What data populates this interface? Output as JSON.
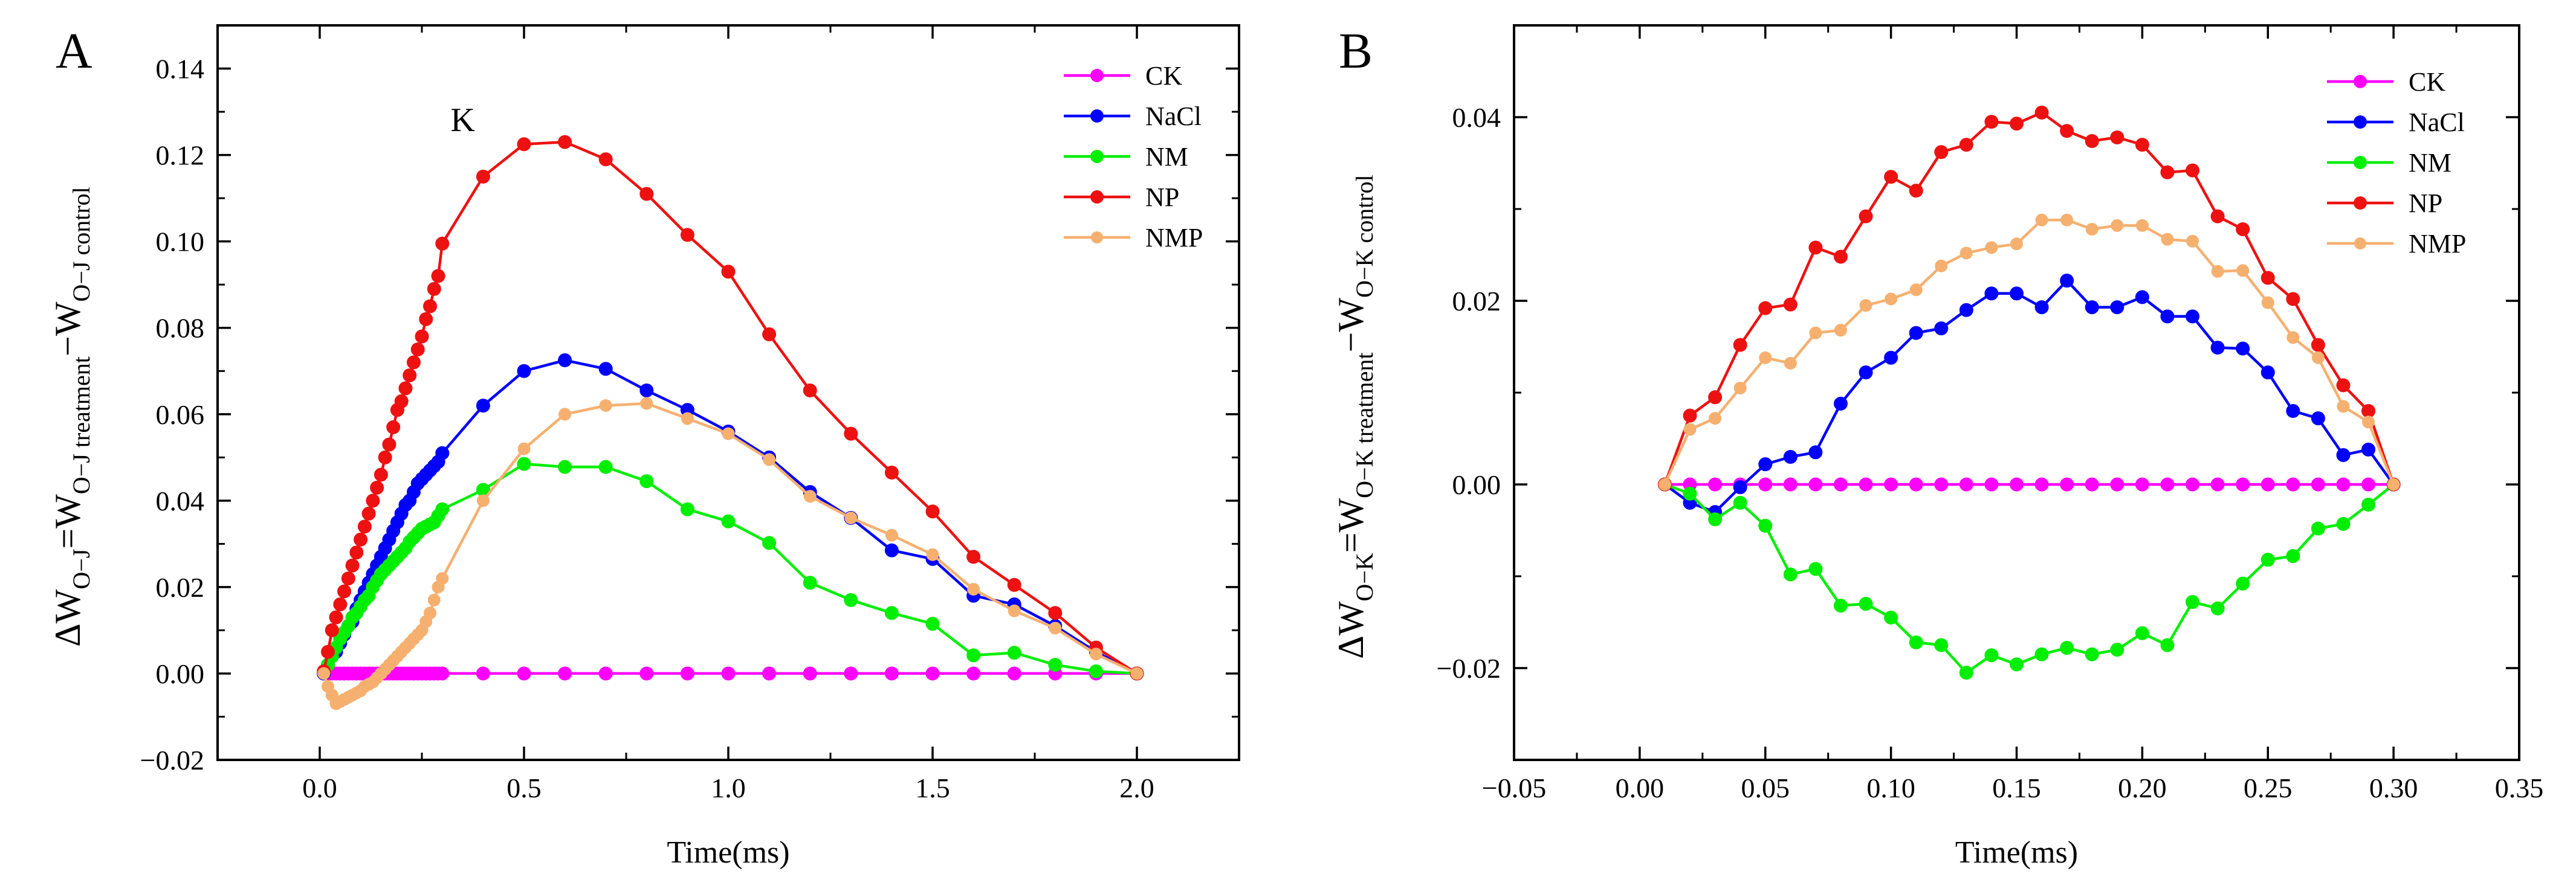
{
  "chart_data": [
    {
      "panel": "A",
      "type": "line",
      "xlabel": "Time(ms)",
      "ylabel": {
        "a": "ΔW",
        "b": "O−J",
        "c": "=W",
        "d": "O−J treatment",
        "e": "−W",
        "f": "O−J control"
      },
      "xlim": [
        -0.25,
        2.25
      ],
      "ylim": [
        -0.02,
        0.15
      ],
      "xticks": [
        0.0,
        0.5,
        1.0,
        1.5,
        2.0
      ],
      "xtick_labels": [
        "0.0",
        "0.5",
        "1.0",
        "1.5",
        "2.0"
      ],
      "yticks": [
        -0.02,
        0.0,
        0.02,
        0.04,
        0.06,
        0.08,
        0.1,
        0.12,
        0.14
      ],
      "ytick_labels": [
        "−0.02",
        "0.00",
        "0.02",
        "0.04",
        "0.06",
        "0.08",
        "0.10",
        "0.12",
        "0.14"
      ],
      "annotations": [
        {
          "text": "K",
          "x": 0.35,
          "y": 0.123
        }
      ],
      "legend": "top-right",
      "series": [
        {
          "name": "CK",
          "color": "#ff00ff",
          "x": [
            0.01,
            0.02,
            0.03,
            0.04,
            0.05,
            0.06,
            0.07,
            0.08,
            0.09,
            0.1,
            0.11,
            0.12,
            0.13,
            0.14,
            0.15,
            0.16,
            0.17,
            0.18,
            0.19,
            0.2,
            0.21,
            0.22,
            0.23,
            0.24,
            0.25,
            0.26,
            0.27,
            0.28,
            0.29,
            0.3,
            0.4,
            0.5,
            0.6,
            0.7,
            0.8,
            0.9,
            1.0,
            1.1,
            1.2,
            1.3,
            1.4,
            1.5,
            1.6,
            1.7,
            1.8,
            1.9,
            2.0
          ],
          "y": [
            0,
            0,
            0,
            0,
            0,
            0,
            0,
            0,
            0,
            0,
            0,
            0,
            0,
            0,
            0,
            0,
            0,
            0,
            0,
            0,
            0,
            0,
            0,
            0,
            0,
            0,
            0,
            0,
            0,
            0,
            0,
            0,
            0,
            0,
            0,
            0,
            0,
            0,
            0,
            0,
            0,
            0,
            0,
            0,
            0,
            0,
            0
          ]
        },
        {
          "name": "NaCl",
          "color": "#0000ff",
          "x": [
            0.01,
            0.02,
            0.03,
            0.04,
            0.05,
            0.06,
            0.07,
            0.08,
            0.09,
            0.1,
            0.11,
            0.12,
            0.13,
            0.14,
            0.15,
            0.16,
            0.17,
            0.18,
            0.19,
            0.2,
            0.21,
            0.22,
            0.23,
            0.24,
            0.25,
            0.26,
            0.27,
            0.28,
            0.29,
            0.3,
            0.4,
            0.5,
            0.6,
            0.7,
            0.8,
            0.9,
            1.0,
            1.1,
            1.2,
            1.3,
            1.4,
            1.5,
            1.6,
            1.7,
            1.8,
            1.9,
            2.0
          ],
          "y": [
            0,
            0.002,
            0.004,
            0.005,
            0.007,
            0.009,
            0.011,
            0.012,
            0.015,
            0.017,
            0.019,
            0.021,
            0.023,
            0.025,
            0.027,
            0.029,
            0.031,
            0.033,
            0.035,
            0.037,
            0.039,
            0.04,
            0.042,
            0.044,
            0.045,
            0.046,
            0.047,
            0.048,
            0.049,
            0.051,
            0.062,
            0.07,
            0.0725,
            0.0705,
            0.0655,
            0.061,
            0.056,
            0.05,
            0.042,
            0.036,
            0.0285,
            0.0265,
            0.018,
            0.016,
            0.011,
            0.005,
            0
          ]
        },
        {
          "name": "NM",
          "color": "#00ee00",
          "x": [
            0.01,
            0.02,
            0.03,
            0.04,
            0.05,
            0.06,
            0.07,
            0.08,
            0.09,
            0.1,
            0.11,
            0.12,
            0.13,
            0.14,
            0.15,
            0.16,
            0.17,
            0.18,
            0.19,
            0.2,
            0.21,
            0.22,
            0.23,
            0.24,
            0.25,
            0.26,
            0.27,
            0.28,
            0.29,
            0.3,
            0.4,
            0.5,
            0.6,
            0.7,
            0.8,
            0.9,
            1.0,
            1.1,
            1.2,
            1.3,
            1.4,
            1.5,
            1.6,
            1.7,
            1.8,
            1.9,
            2.0
          ],
          "y": [
            0.0005,
            0.002,
            0.004,
            0.006,
            0.008,
            0.0095,
            0.011,
            0.013,
            0.014,
            0.0155,
            0.017,
            0.018,
            0.02,
            0.0215,
            0.023,
            0.024,
            0.025,
            0.026,
            0.027,
            0.028,
            0.029,
            0.0305,
            0.0315,
            0.0325,
            0.0335,
            0.034,
            0.0345,
            0.035,
            0.0365,
            0.038,
            0.0425,
            0.0485,
            0.0478,
            0.0478,
            0.0445,
            0.038,
            0.0352,
            0.0302,
            0.021,
            0.017,
            0.014,
            0.0115,
            0.0042,
            0.0048,
            0.002,
            0.0005,
            0
          ]
        },
        {
          "name": "NP",
          "color": "#ee1111",
          "x": [
            0.01,
            0.02,
            0.03,
            0.04,
            0.05,
            0.06,
            0.07,
            0.08,
            0.09,
            0.1,
            0.11,
            0.12,
            0.13,
            0.14,
            0.15,
            0.16,
            0.17,
            0.18,
            0.19,
            0.2,
            0.21,
            0.22,
            0.23,
            0.24,
            0.25,
            0.26,
            0.27,
            0.28,
            0.29,
            0.3,
            0.4,
            0.5,
            0.6,
            0.7,
            0.8,
            0.9,
            1.0,
            1.1,
            1.2,
            1.3,
            1.4,
            1.5,
            1.6,
            1.7,
            1.8,
            1.9,
            2.0
          ],
          "y": [
            0.0005,
            0.005,
            0.01,
            0.013,
            0.016,
            0.019,
            0.022,
            0.025,
            0.028,
            0.031,
            0.034,
            0.037,
            0.04,
            0.043,
            0.046,
            0.05,
            0.053,
            0.057,
            0.061,
            0.063,
            0.066,
            0.069,
            0.072,
            0.075,
            0.078,
            0.082,
            0.085,
            0.089,
            0.092,
            0.0995,
            0.115,
            0.1225,
            0.123,
            0.119,
            0.111,
            0.1015,
            0.093,
            0.0785,
            0.0655,
            0.0555,
            0.0465,
            0.0375,
            0.027,
            0.0205,
            0.014,
            0.006,
            0
          ]
        },
        {
          "name": "NMP",
          "color": "#f5b070",
          "x": [
            0.01,
            0.02,
            0.03,
            0.04,
            0.05,
            0.06,
            0.07,
            0.08,
            0.09,
            0.1,
            0.11,
            0.12,
            0.13,
            0.14,
            0.15,
            0.16,
            0.17,
            0.18,
            0.19,
            0.2,
            0.21,
            0.22,
            0.23,
            0.24,
            0.25,
            0.26,
            0.27,
            0.28,
            0.29,
            0.3,
            0.4,
            0.5,
            0.6,
            0.7,
            0.8,
            0.9,
            1.0,
            1.1,
            1.2,
            1.3,
            1.4,
            1.5,
            1.6,
            1.7,
            1.8,
            1.9,
            2.0
          ],
          "y": [
            0,
            -0.003,
            -0.005,
            -0.007,
            -0.0065,
            -0.006,
            -0.0055,
            -0.005,
            -0.0045,
            -0.004,
            -0.003,
            -0.0025,
            -0.002,
            -0.001,
            0,
            0.001,
            0.002,
            0.003,
            0.004,
            0.005,
            0.006,
            0.007,
            0.008,
            0.009,
            0.01,
            0.012,
            0.014,
            0.017,
            0.02,
            0.022,
            0.04,
            0.052,
            0.06,
            0.062,
            0.0625,
            0.059,
            0.0555,
            0.0495,
            0.041,
            0.036,
            0.032,
            0.0275,
            0.0195,
            0.0145,
            0.0105,
            0.0045,
            0
          ]
        }
      ]
    },
    {
      "panel": "B",
      "type": "line",
      "xlabel": "Time(ms)",
      "ylabel": {
        "a": "ΔW",
        "b": "O−K",
        "c": "=W",
        "d": "O−K treatment",
        "e": "−W",
        "f": "O−K control"
      },
      "xlim": [
        -0.05,
        0.35
      ],
      "ylim": [
        -0.03,
        0.05
      ],
      "xticks": [
        -0.05,
        0.0,
        0.05,
        0.1,
        0.15,
        0.2,
        0.25,
        0.3,
        0.35
      ],
      "xtick_labels": [
        "−0.05",
        "0.00",
        "0.05",
        "0.10",
        "0.15",
        "0.20",
        "0.25",
        "0.30",
        "0.35"
      ],
      "yticks": [
        -0.02,
        0.0,
        0.02,
        0.04
      ],
      "ytick_labels": [
        "−0.02",
        "0.00",
        "0.02",
        "0.04"
      ],
      "legend": "top-right",
      "series": [
        {
          "name": "CK",
          "color": "#ff00ff",
          "x": [
            0.01,
            0.02,
            0.03,
            0.04,
            0.05,
            0.06,
            0.07,
            0.08,
            0.09,
            0.1,
            0.11,
            0.12,
            0.13,
            0.14,
            0.15,
            0.16,
            0.17,
            0.18,
            0.19,
            0.2,
            0.21,
            0.22,
            0.23,
            0.24,
            0.25,
            0.26,
            0.27,
            0.28,
            0.29,
            0.3
          ],
          "y": [
            0,
            0,
            0,
            0,
            0,
            0,
            0,
            0,
            0,
            0,
            0,
            0,
            0,
            0,
            0,
            0,
            0,
            0,
            0,
            0,
            0,
            0,
            0,
            0,
            0,
            0,
            0,
            0,
            0,
            0
          ]
        },
        {
          "name": "NaCl",
          "color": "#0000ff",
          "x": [
            0.01,
            0.02,
            0.03,
            0.04,
            0.05,
            0.06,
            0.07,
            0.08,
            0.09,
            0.1,
            0.11,
            0.12,
            0.13,
            0.14,
            0.15,
            0.16,
            0.17,
            0.18,
            0.19,
            0.2,
            0.21,
            0.22,
            0.23,
            0.24,
            0.25,
            0.26,
            0.27,
            0.28,
            0.29,
            0.3
          ],
          "y": [
            0,
            -0.002,
            -0.003,
            -0.0003,
            0.0022,
            0.003,
            0.0035,
            0.0088,
            0.0122,
            0.0138,
            0.0165,
            0.017,
            0.019,
            0.0208,
            0.0208,
            0.0193,
            0.0222,
            0.0193,
            0.0193,
            0.0204,
            0.0183,
            0.0183,
            0.0149,
            0.0148,
            0.0122,
            0.008,
            0.0072,
            0.0032,
            0.0038,
            0
          ]
        },
        {
          "name": "NM",
          "color": "#00ee00",
          "x": [
            0.01,
            0.02,
            0.03,
            0.04,
            0.05,
            0.06,
            0.07,
            0.08,
            0.09,
            0.1,
            0.11,
            0.12,
            0.13,
            0.14,
            0.15,
            0.16,
            0.17,
            0.18,
            0.19,
            0.2,
            0.21,
            0.22,
            0.23,
            0.24,
            0.25,
            0.26,
            0.27,
            0.28,
            0.29,
            0.3
          ],
          "y": [
            0,
            -0.001,
            -0.0038,
            -0.002,
            -0.0045,
            -0.0098,
            -0.0092,
            -0.0132,
            -0.013,
            -0.0145,
            -0.0172,
            -0.0175,
            -0.0205,
            -0.0186,
            -0.0196,
            -0.0185,
            -0.0178,
            -0.0185,
            -0.018,
            -0.0162,
            -0.0175,
            -0.0128,
            -0.0135,
            -0.0108,
            -0.0082,
            -0.0078,
            -0.0048,
            -0.0043,
            -0.0022,
            0
          ]
        },
        {
          "name": "NP",
          "color": "#ee1111",
          "x": [
            0.01,
            0.02,
            0.03,
            0.04,
            0.05,
            0.06,
            0.07,
            0.08,
            0.09,
            0.1,
            0.11,
            0.12,
            0.13,
            0.14,
            0.15,
            0.16,
            0.17,
            0.18,
            0.19,
            0.2,
            0.21,
            0.22,
            0.23,
            0.24,
            0.25,
            0.26,
            0.27,
            0.28,
            0.29,
            0.3
          ],
          "y": [
            0,
            0.0075,
            0.0095,
            0.0152,
            0.0192,
            0.0196,
            0.0258,
            0.0248,
            0.0292,
            0.0335,
            0.032,
            0.0362,
            0.037,
            0.0395,
            0.0393,
            0.0405,
            0.0385,
            0.0374,
            0.0378,
            0.037,
            0.034,
            0.0342,
            0.0292,
            0.0278,
            0.0225,
            0.0202,
            0.0152,
            0.0108,
            0.008,
            0
          ]
        },
        {
          "name": "NMP",
          "color": "#f5b070",
          "x": [
            0.01,
            0.02,
            0.03,
            0.04,
            0.05,
            0.06,
            0.07,
            0.08,
            0.09,
            0.1,
            0.11,
            0.12,
            0.13,
            0.14,
            0.15,
            0.16,
            0.17,
            0.18,
            0.19,
            0.2,
            0.21,
            0.22,
            0.23,
            0.24,
            0.25,
            0.26,
            0.27,
            0.28,
            0.29,
            0.3
          ],
          "y": [
            0,
            0.006,
            0.0072,
            0.0105,
            0.0138,
            0.0132,
            0.0165,
            0.0168,
            0.0195,
            0.0202,
            0.0212,
            0.0238,
            0.0252,
            0.0258,
            0.0262,
            0.0288,
            0.0288,
            0.0278,
            0.0282,
            0.0282,
            0.0267,
            0.0265,
            0.0232,
            0.0233,
            0.0198,
            0.016,
            0.0138,
            0.0085,
            0.0068,
            0
          ]
        }
      ]
    }
  ]
}
